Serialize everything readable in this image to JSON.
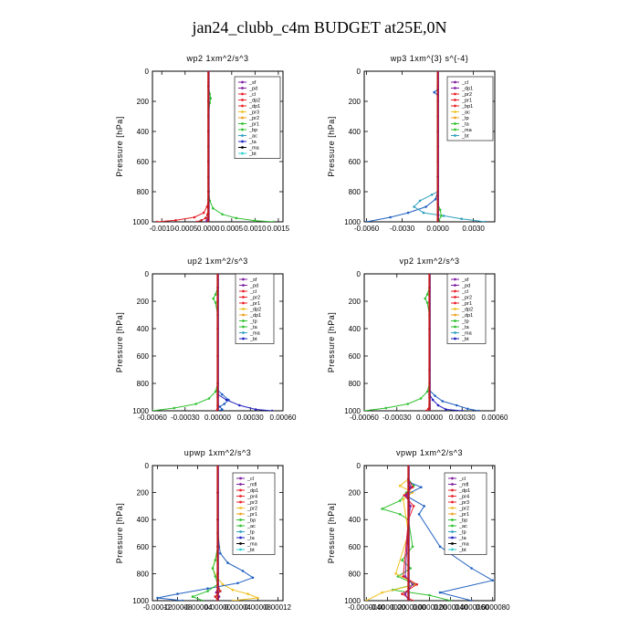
{
  "figure": {
    "title": "jan24_clubb_c4m  BUDGET at25E,0N"
  },
  "chart_data": [
    {
      "type": "line",
      "title": "wp2   1xm^2/s^3",
      "ylabel": "Pressure [hPa]",
      "xlim": [
        -0.0012,
        0.0016
      ],
      "ylim": [
        1000,
        0
      ],
      "xticks": [
        "-0.0010",
        "-0.0005",
        "0.0000",
        "0.0005",
        "0.0010",
        "0.0015"
      ],
      "xtick_values": [
        -0.001,
        -0.0005,
        0.0,
        0.0005,
        0.001,
        0.0015
      ],
      "yticks": [
        0,
        200,
        400,
        600,
        800,
        1000
      ],
      "legend": [
        "_sf",
        "_pd",
        "_cl",
        "_dp2",
        "_dp1",
        "_pr3",
        "_pr2",
        "_pr1",
        "_bp",
        "_ac",
        "_ta",
        "_ma",
        "_bt"
      ],
      "series": [
        {
          "name": "_pd",
          "color": "#e8202a",
          "x": [
            0,
            0,
            0,
            0,
            0,
            0,
            0,
            0,
            0,
            0,
            -3e-05,
            -0.0001,
            -0.0003,
            -0.0007,
            -0.0011
          ],
          "y": [
            0,
            100,
            200,
            300,
            400,
            500,
            600,
            700,
            800,
            850,
            900,
            940,
            970,
            990,
            1000
          ]
        },
        {
          "name": "_ac",
          "color": "#30c030",
          "x": [
            0,
            0,
            3e-05,
            5e-05,
            3e-05,
            0,
            0,
            0,
            1e-05,
            3e-05,
            0.0001,
            0.0003,
            0.0006,
            0.001,
            0.0014
          ],
          "y": [
            0,
            100,
            150,
            180,
            210,
            300,
            500,
            700,
            800,
            860,
            910,
            950,
            975,
            992,
            1000
          ]
        },
        {
          "name": "_dp1",
          "color": "#8020a0",
          "x": [
            0,
            0,
            0,
            0,
            0,
            0,
            0,
            0,
            -1e-05,
            -3e-05,
            -5e-05
          ],
          "y": [
            0,
            100,
            200,
            400,
            600,
            800,
            900,
            950,
            975,
            990,
            1000
          ]
        },
        {
          "name": "_cl",
          "color": "#d02020",
          "x": [
            0,
            0,
            0,
            0,
            0,
            0,
            0,
            -2e-05,
            -6e-05,
            -0.00015,
            -0.00025
          ],
          "y": [
            0,
            100,
            200,
            400,
            600,
            800,
            900,
            950,
            975,
            990,
            1000
          ]
        }
      ]
    },
    {
      "type": "line",
      "title": "wp3   1xm^{3} s^{-4}",
      "ylabel": "Pressure [hPa]",
      "xlim": [
        -0.0062,
        0.0048
      ],
      "ylim": [
        1000,
        0
      ],
      "xticks": [
        "-0.0060",
        "-0.0030",
        "0.0000",
        "0.0030"
      ],
      "xtick_values": [
        -0.006,
        -0.003,
        0.0,
        0.003
      ],
      "yticks": [
        0,
        200,
        400,
        600,
        800,
        1000
      ],
      "legend": [
        "_cl",
        "_dp1",
        "_pr2",
        "_pr1",
        "_bp1",
        "_ac",
        "_tp",
        "_ta",
        "_ma",
        "_bt"
      ],
      "series": [
        {
          "name": "_cl",
          "color": "#e8202a",
          "x": [
            0,
            0,
            0,
            0,
            0,
            0,
            0,
            0,
            0,
            0
          ],
          "y": [
            0,
            100,
            200,
            300,
            400,
            500,
            600,
            700,
            800,
            1000
          ]
        },
        {
          "name": "_tp",
          "color": "#2060c0",
          "x": [
            0,
            0,
            -0.0003,
            0,
            0,
            0,
            0,
            -0.0002,
            -0.001,
            -0.0025,
            -0.004,
            -0.006
          ],
          "y": [
            0,
            120,
            140,
            160,
            400,
            700,
            800,
            850,
            900,
            940,
            970,
            1000
          ]
        },
        {
          "name": "_ac",
          "color": "#30a0c0",
          "x": [
            0,
            0,
            -0.0005,
            -0.0015,
            -0.002,
            -0.0012,
            0.0005,
            0.002,
            0.004
          ],
          "y": [
            0,
            800,
            820,
            860,
            900,
            940,
            960,
            980,
            1000
          ]
        },
        {
          "name": "_bp1",
          "color": "#30c030",
          "x": [
            0,
            0,
            0.0002,
            0.0003,
            0.0001,
            0
          ],
          "y": [
            0,
            880,
            920,
            960,
            990,
            1000
          ]
        }
      ]
    },
    {
      "type": "line",
      "title": "up2   1xm^2/s^3",
      "ylabel": "Pressure [hPa]",
      "xlim": [
        -0.0006,
        0.0006
      ],
      "ylim": [
        1000,
        0
      ],
      "xticks": [
        "-0.00060",
        "-0.00030",
        "0.00000",
        "0.00030",
        "0.00060"
      ],
      "xtick_values": [
        -0.0006,
        -0.0003,
        0.0,
        0.0003,
        0.0006
      ],
      "yticks": [
        0,
        200,
        400,
        600,
        800,
        1000
      ],
      "legend": [
        "_sf",
        "_pd",
        "_cl",
        "_pr2",
        "_pr1",
        "_dp2",
        "_dp1",
        "_tp",
        "_ta",
        "_ma",
        "_bt"
      ],
      "series": [
        {
          "name": "_dp1",
          "color": "#30c030",
          "x": [
            0,
            0,
            -2e-05,
            -4e-05,
            -2e-05,
            0,
            0,
            -2e-05,
            -8e-05,
            -0.0002,
            -0.0004,
            -0.0006
          ],
          "y": [
            0,
            100,
            150,
            180,
            210,
            300,
            800,
            860,
            910,
            950,
            980,
            1000
          ]
        },
        {
          "name": "_tp",
          "color": "#2060c0",
          "x": [
            0,
            0,
            4e-05,
            0.0001,
            6e-05,
            2e-05,
            4e-05,
            1e-05
          ],
          "y": [
            0,
            850,
            880,
            920,
            950,
            970,
            990,
            1000
          ]
        },
        {
          "name": "_pr1",
          "color": "#2020c0",
          "x": [
            0,
            0,
            8e-05,
            0.0002,
            0.00035,
            0.0005
          ],
          "y": [
            0,
            880,
            920,
            960,
            990,
            1000
          ]
        },
        {
          "name": "_pd",
          "color": "#e8202a",
          "x": [
            0,
            0,
            0,
            0,
            0,
            0,
            0,
            0,
            -1e-05
          ],
          "y": [
            0,
            100,
            200,
            400,
            600,
            800,
            900,
            960,
            1000
          ]
        }
      ]
    },
    {
      "type": "line",
      "title": "vp2   1xm^2/s^3",
      "ylabel": "Pressure [hPa]",
      "xlim": [
        -0.0006,
        0.0006
      ],
      "ylim": [
        1000,
        0
      ],
      "xticks": [
        "-0.00060",
        "-0.00030",
        "0.00000",
        "0.00030",
        "0.00060"
      ],
      "xtick_values": [
        -0.0006,
        -0.0003,
        0.0,
        0.0003,
        0.0006
      ],
      "yticks": [
        0,
        200,
        400,
        600,
        800,
        1000
      ],
      "legend": [
        "_sf",
        "_pd",
        "_cl",
        "_pr2",
        "_pr1",
        "_dp2",
        "_dp1",
        "_tp",
        "_ta",
        "_ma",
        "_bt"
      ],
      "series": [
        {
          "name": "_dp1",
          "color": "#30c030",
          "x": [
            0,
            0,
            -2e-05,
            -4e-05,
            -2e-05,
            0,
            0,
            -2e-05,
            -8e-05,
            -0.0002,
            -0.0004,
            -0.0006
          ],
          "y": [
            0,
            100,
            150,
            180,
            210,
            300,
            800,
            860,
            910,
            950,
            980,
            1000
          ]
        },
        {
          "name": "_tp",
          "color": "#2060c0",
          "x": [
            0,
            0,
            5e-05,
            0.00012,
            0.00025,
            0.00035,
            0.00045
          ],
          "y": [
            0,
            850,
            890,
            930,
            960,
            985,
            1000
          ]
        },
        {
          "name": "_pr1",
          "color": "#2020c0",
          "x": [
            0,
            0,
            3e-05,
            8e-05,
            0.00015,
            0.0003
          ],
          "y": [
            0,
            880,
            920,
            960,
            990,
            1000
          ]
        },
        {
          "name": "_pd",
          "color": "#e8202a",
          "x": [
            0,
            0,
            0,
            0,
            0,
            0,
            -1e-05,
            -3e-05
          ],
          "y": [
            0,
            100,
            400,
            700,
            900,
            960,
            985,
            1000
          ]
        }
      ]
    },
    {
      "type": "line",
      "title": "upwp   1xm^2/s^3",
      "ylabel": "Pressure [hPa]",
      "xlim": [
        -0.00013,
        0.00013
      ],
      "ylim": [
        1000,
        0
      ],
      "xticks": [
        "-0.00012",
        "-0.00008",
        "-0.00004",
        "0.00000",
        "0.00004",
        "0.00008",
        "0.00012"
      ],
      "xtick_values": [
        -0.00012,
        -8e-05,
        -4e-05,
        0.0,
        4e-05,
        8e-05,
        0.00012
      ],
      "yticks": [
        0,
        200,
        400,
        600,
        800,
        1000
      ],
      "legend": [
        "_cl",
        "_mfl",
        "_dp1",
        "_pr4",
        "_pr3",
        "_pr2",
        "_pr1",
        "_bp",
        "_ac",
        "_tp",
        "_ta",
        "_ma",
        "_bt"
      ],
      "series": [
        {
          "name": "_pr1",
          "color": "#f0c020",
          "x": [
            0,
            0,
            3e-06,
            -5e-06,
            -1e-05,
            -3e-06,
            1e-05,
            3e-05,
            6e-05,
            8e-05,
            3e-05
          ],
          "y": [
            0,
            400,
            600,
            700,
            760,
            820,
            880,
            920,
            950,
            980,
            1000
          ]
        },
        {
          "name": "_tp",
          "color": "#2060c0",
          "x": [
            0,
            0,
            5e-06,
            2e-05,
            5e-05,
            7e-05,
            4e-05,
            -2e-05,
            -8e-05,
            -0.00012,
            -7e-05
          ],
          "y": [
            0,
            500,
            650,
            720,
            780,
            830,
            870,
            910,
            950,
            980,
            1000
          ]
        },
        {
          "name": "_bp",
          "color": "#30c030",
          "x": [
            0,
            0,
            -5e-06,
            -1e-05,
            -5e-06,
            0,
            -2e-05,
            -5e-05,
            -3e-05
          ],
          "y": [
            0,
            600,
            700,
            760,
            820,
            880,
            930,
            970,
            1000
          ]
        },
        {
          "name": "_mfl",
          "color": "#8020a0",
          "x": [
            0,
            0,
            0,
            0,
            0,
            0,
            -3e-06,
            3e-06,
            0
          ],
          "y": [
            0,
            200,
            400,
            600,
            800,
            900,
            940,
            970,
            1000
          ]
        },
        {
          "name": "_cl",
          "color": "#d02020",
          "x": [
            0,
            0,
            0,
            0,
            0,
            0,
            5e-06,
            -5e-06,
            0
          ],
          "y": [
            0,
            200,
            400,
            600,
            800,
            880,
            930,
            970,
            1000
          ]
        }
      ]
    },
    {
      "type": "line",
      "title": "vpwp   1xm^2/s^3",
      "ylabel": "Pressure [hPa]",
      "xlim": [
        -4.2e-06,
        8.2e-06
      ],
      "ylim": [
        1000,
        0
      ],
      "xticks": [
        "-0.0000040",
        "-0.0000020",
        "0.0000000",
        "0.0000020",
        "0.0000040",
        "0.0000060",
        "0.0000080"
      ],
      "xtick_values": [
        -4e-06,
        -2e-06,
        0.0,
        2e-06,
        4e-06,
        6e-06,
        8e-06
      ],
      "yticks": [
        0,
        200,
        400,
        600,
        800,
        1000
      ],
      "legend": [
        "_cl",
        "_mfl",
        "_dp1",
        "_pr4",
        "_pr3",
        "_pr2",
        "_pr1",
        "_bp",
        "_ac",
        "_tp",
        "_ta",
        "_ma",
        "_bt"
      ],
      "series": [
        {
          "name": "_bp",
          "color": "#30c030",
          "x": [
            0,
            0,
            5e-07,
            -2e-07,
            -8e-07,
            -2.5e-06,
            -8e-07,
            0,
            4e-07,
            -6e-07,
            2e-07,
            -1e-06,
            6e-07,
            -1.5e-06,
            2e-06,
            4e-06
          ],
          "y": [
            0,
            100,
            150,
            200,
            260,
            320,
            360,
            400,
            600,
            700,
            760,
            820,
            880,
            920,
            960,
            1000
          ]
        },
        {
          "name": "_pr1",
          "color": "#f0c020",
          "x": [
            0,
            0,
            -8e-07,
            4e-07,
            -5e-07,
            0,
            -1.2e-06,
            8e-07,
            -2.5e-06,
            -4e-06
          ],
          "y": [
            0,
            100,
            150,
            200,
            250,
            500,
            800,
            880,
            940,
            1000
          ]
        },
        {
          "name": "_tp",
          "color": "#2060c0",
          "x": [
            0,
            0,
            1.2e-06,
            -3e-07,
            1.5e-06,
            1e-06,
            3e-06,
            6e-06,
            8e-06,
            3e-06,
            6e-06
          ],
          "y": [
            0,
            120,
            160,
            220,
            300,
            360,
            600,
            760,
            850,
            940,
            1000
          ]
        },
        {
          "name": "_cl",
          "color": "#e8202a",
          "x": [
            0,
            0,
            4e-07,
            -4e-07,
            5e-07,
            0,
            -5e-07,
            8e-07,
            -6e-07,
            4e-07
          ],
          "y": [
            0,
            100,
            160,
            220,
            300,
            400,
            820,
            880,
            950,
            1000
          ]
        },
        {
          "name": "_mfl",
          "color": "#8020a0",
          "x": [
            0,
            0,
            2e-07,
            -2e-07,
            2e-07,
            0,
            -3e-07,
            4e-07,
            -3e-07,
            0
          ],
          "y": [
            0,
            100,
            160,
            220,
            300,
            400,
            820,
            880,
            950,
            1000
          ]
        }
      ]
    }
  ]
}
